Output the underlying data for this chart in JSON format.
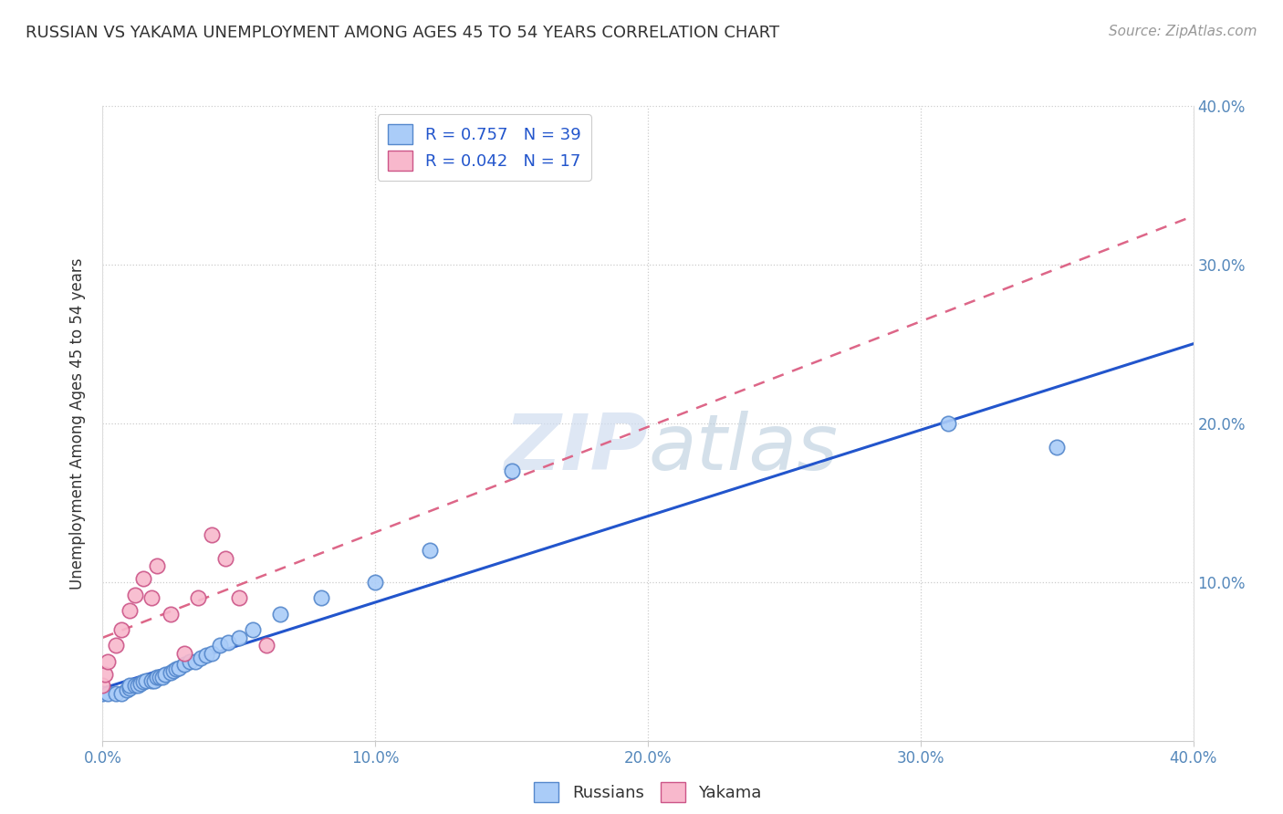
{
  "title": "RUSSIAN VS YAKAMA UNEMPLOYMENT AMONG AGES 45 TO 54 YEARS CORRELATION CHART",
  "source": "Source: ZipAtlas.com",
  "ylabel": "Unemployment Among Ages 45 to 54 years",
  "xlabel": "",
  "xlim": [
    0.0,
    0.4
  ],
  "ylim": [
    -0.02,
    0.42
  ],
  "plot_ylim": [
    0.0,
    0.4
  ],
  "xticks": [
    0.0,
    0.1,
    0.2,
    0.3,
    0.4
  ],
  "yticks": [
    0.1,
    0.2,
    0.3,
    0.4
  ],
  "xtick_labels": [
    "0.0%",
    "10.0%",
    "20.0%",
    "30.0%",
    "40.0%"
  ],
  "ytick_labels": [
    "10.0%",
    "20.0%",
    "30.0%",
    "40.0%"
  ],
  "background_color": "#ffffff",
  "grid_color": "#cccccc",
  "watermark_text": "ZIPatlas",
  "russian_color": "#aaccf8",
  "russian_edge_color": "#5588cc",
  "yakama_color": "#f8b8cc",
  "yakama_edge_color": "#cc5588",
  "russian_R": 0.757,
  "russian_N": 39,
  "yakama_R": 0.042,
  "yakama_N": 17,
  "legend_text_color": "#2255cc",
  "trendline_russian_color": "#2255cc",
  "trendline_yakama_color": "#dd6688",
  "russian_x": [
    0.0,
    0.002,
    0.005,
    0.007,
    0.009,
    0.01,
    0.01,
    0.012,
    0.013,
    0.014,
    0.015,
    0.016,
    0.018,
    0.019,
    0.02,
    0.021,
    0.022,
    0.023,
    0.025,
    0.026,
    0.027,
    0.028,
    0.03,
    0.032,
    0.034,
    0.036,
    0.038,
    0.04,
    0.043,
    0.046,
    0.05,
    0.055,
    0.065,
    0.08,
    0.1,
    0.12,
    0.15,
    0.31,
    0.35
  ],
  "russian_y": [
    0.03,
    0.03,
    0.03,
    0.03,
    0.032,
    0.033,
    0.035,
    0.035,
    0.035,
    0.036,
    0.037,
    0.038,
    0.038,
    0.038,
    0.04,
    0.04,
    0.04,
    0.042,
    0.043,
    0.044,
    0.045,
    0.046,
    0.048,
    0.05,
    0.05,
    0.052,
    0.054,
    0.055,
    0.06,
    0.062,
    0.065,
    0.07,
    0.08,
    0.09,
    0.1,
    0.12,
    0.17,
    0.2,
    0.185
  ],
  "yakama_x": [
    0.0,
    0.001,
    0.002,
    0.005,
    0.007,
    0.01,
    0.012,
    0.015,
    0.018,
    0.02,
    0.025,
    0.03,
    0.035,
    0.04,
    0.045,
    0.05,
    0.06
  ],
  "yakama_y": [
    0.035,
    0.042,
    0.05,
    0.06,
    0.07,
    0.082,
    0.092,
    0.102,
    0.09,
    0.11,
    0.08,
    0.055,
    0.09,
    0.13,
    0.115,
    0.09,
    0.06
  ]
}
